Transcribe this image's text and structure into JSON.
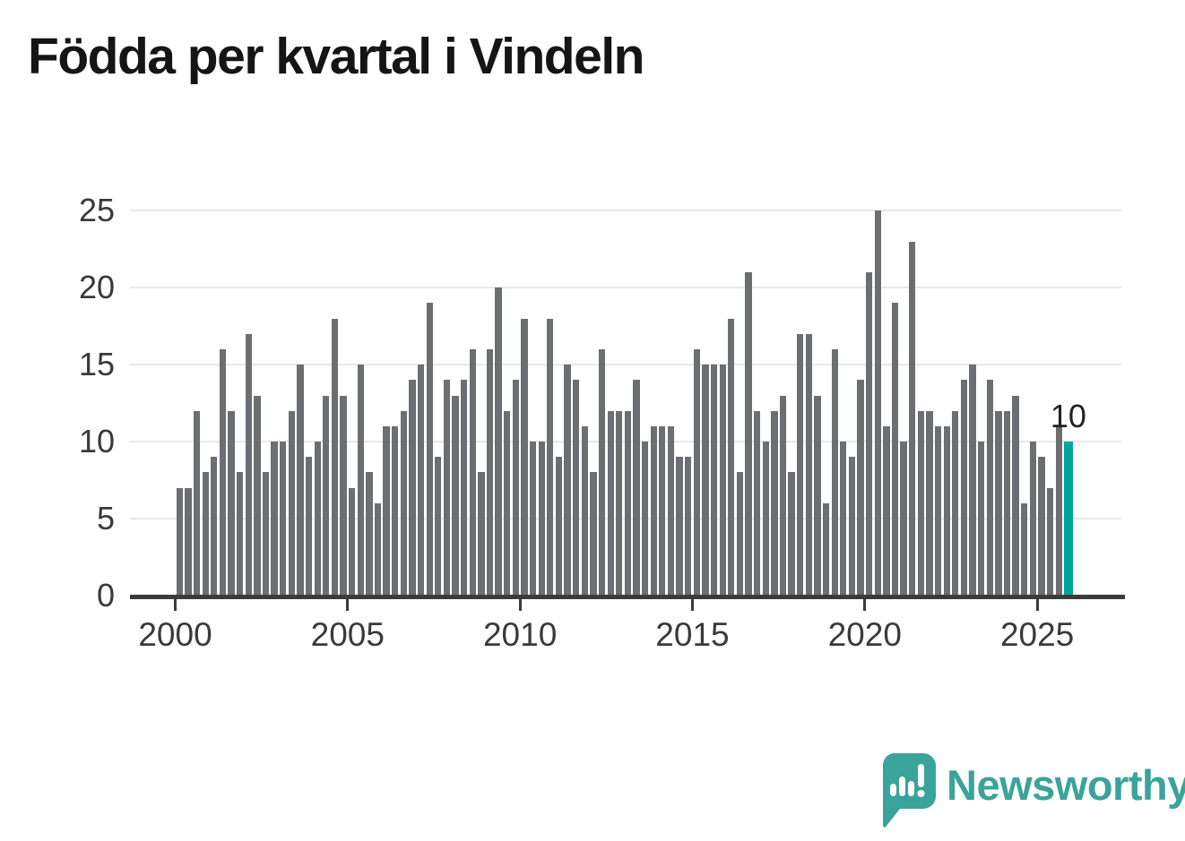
{
  "title": "Födda per kvartal i Vindeln",
  "annotation": {
    "label": "10"
  },
  "logo": {
    "text": "Newsworthy"
  },
  "colors": {
    "bar": "#6d6e72",
    "highlight": "#00a69c",
    "grid": "#e8e8e8",
    "axis": "#3b3b3b",
    "tick_text": "#3a3a3a",
    "title_text": "#151515",
    "annotation_text": "#222222",
    "logo_teal": "#3aa39a",
    "background": "#ffffff"
  },
  "chart_data": {
    "type": "bar",
    "title": "Födda per kvartal i Vindeln",
    "xlabel": "",
    "ylabel": "",
    "ylim": [
      0,
      25
    ],
    "y_ticks": [
      0,
      5,
      10,
      15,
      20,
      25
    ],
    "x_ticks": [
      2000,
      2005,
      2010,
      2015,
      2020,
      2025
    ],
    "grid": true,
    "legend_position": "none",
    "unit": "födda per kvartal",
    "series": [
      {
        "year": 2000,
        "values": [
          7,
          7,
          12,
          8
        ]
      },
      {
        "year": 2001,
        "values": [
          9,
          16,
          12,
          8
        ]
      },
      {
        "year": 2002,
        "values": [
          17,
          13,
          8,
          10
        ]
      },
      {
        "year": 2003,
        "values": [
          10,
          12,
          15,
          9
        ]
      },
      {
        "year": 2004,
        "values": [
          10,
          13,
          18,
          13
        ]
      },
      {
        "year": 2005,
        "values": [
          7,
          15,
          8,
          6
        ]
      },
      {
        "year": 2006,
        "values": [
          11,
          11,
          12,
          14
        ]
      },
      {
        "year": 2007,
        "values": [
          15,
          19,
          9,
          14
        ]
      },
      {
        "year": 2008,
        "values": [
          13,
          14,
          16,
          8
        ]
      },
      {
        "year": 2009,
        "values": [
          16,
          20,
          12,
          14
        ]
      },
      {
        "year": 2010,
        "values": [
          18,
          10,
          10,
          18
        ]
      },
      {
        "year": 2011,
        "values": [
          9,
          15,
          14,
          11
        ]
      },
      {
        "year": 2012,
        "values": [
          8,
          16,
          12,
          12
        ]
      },
      {
        "year": 2013,
        "values": [
          12,
          14,
          10,
          11
        ]
      },
      {
        "year": 2014,
        "values": [
          11,
          11,
          9,
          9
        ]
      },
      {
        "year": 2015,
        "values": [
          16,
          15,
          15,
          15
        ]
      },
      {
        "year": 2016,
        "values": [
          18,
          8,
          21,
          12
        ]
      },
      {
        "year": 2017,
        "values": [
          10,
          12,
          13,
          8
        ]
      },
      {
        "year": 2018,
        "values": [
          17,
          17,
          13,
          6
        ]
      },
      {
        "year": 2019,
        "values": [
          16,
          10,
          9,
          14
        ]
      },
      {
        "year": 2020,
        "values": [
          21,
          25,
          11,
          19
        ]
      },
      {
        "year": 2021,
        "values": [
          10,
          23,
          12,
          12
        ]
      },
      {
        "year": 2022,
        "values": [
          11,
          11,
          12,
          14
        ]
      },
      {
        "year": 2023,
        "values": [
          15,
          10,
          14,
          12
        ]
      },
      {
        "year": 2024,
        "values": [
          12,
          13,
          6,
          10
        ]
      },
      {
        "year": 2025,
        "values": [
          9,
          7,
          11,
          10
        ]
      }
    ],
    "highlight": {
      "year": 2025,
      "quarter": 4,
      "value": 10,
      "label": "10"
    }
  }
}
